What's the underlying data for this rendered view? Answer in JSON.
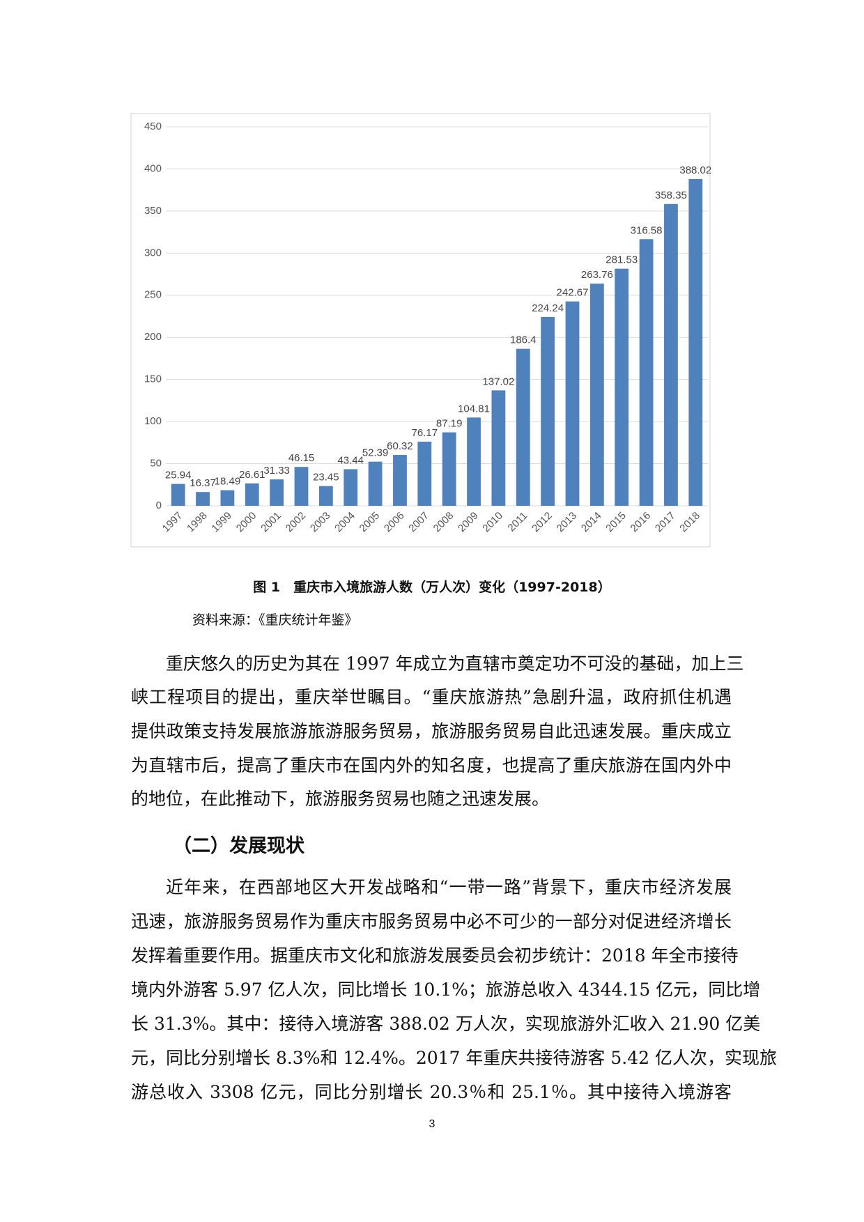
{
  "chart_data": {
    "type": "bar",
    "categories": [
      "1997",
      "1998",
      "1999",
      "2000",
      "2001",
      "2002",
      "2003",
      "2004",
      "2005",
      "2006",
      "2007",
      "2008",
      "2009",
      "2010",
      "2011",
      "2012",
      "2013",
      "2014",
      "2015",
      "2016",
      "2017",
      "2018"
    ],
    "values": [
      25.94,
      16.37,
      18.49,
      26.61,
      31.33,
      46.15,
      23.45,
      43.44,
      52.39,
      60.32,
      76.17,
      87.19,
      104.81,
      137.02,
      186.4,
      224.24,
      242.67,
      263.76,
      281.53,
      316.58,
      358.35,
      388.02
    ],
    "color": "#4f81bd",
    "ylim": [
      0,
      450
    ],
    "yticks": [
      0,
      50,
      100,
      150,
      200,
      250,
      300,
      350,
      400,
      450
    ],
    "grid": true
  },
  "caption": "图 1　重庆市入境旅游人数（万人次）变化（1997-2018）",
  "source": "资料来源：《重庆统计年鉴》",
  "paragraphs": [
    [
      "重庆悠久的历史为其在 1997 年成立为直辖市奠定功不可没的基础，加上三",
      "峡工程项目的提出，重庆举世瞩目。“重庆旅游热”急剧升温，政府抓住机遇",
      "提供政策支持发展旅游旅游服务贸易，旅游服务贸易自此迅速发展。重庆成立",
      "为直辖市后，提高了重庆市在国内外的知名度，也提高了重庆旅游在国内外中",
      "的地位，在此推动下，旅游服务贸易也随之迅速发展。"
    ],
    [
      "近年来，在西部地区大开发战略和“一带一路”背景下，重庆市经济发展",
      "迅速，旅游服务贸易作为重庆市服务贸易中必不可少的一部分对促进经济增长",
      "发挥着重要作用。据重庆市文化和旅游发展委员会初步统计：2018 年全市接待",
      "境内外游客 5.97 亿人次，同比增长 10.1%；旅游总收入 4344.15 亿元，同比增",
      "长 31.3%。其中：接待入境游客 388.02 万人次，实现旅游外汇收入 21.90 亿美",
      "元，同比分别增长 8.3%和 12.4%。2017 年重庆共接待游客 5.42 亿人次，实现旅",
      "游总收入 3308 亿元，同比分别增长 20.3％和 25.1％。其中接待入境游客"
    ]
  ],
  "heading": "（二）发展现状",
  "page_number": "3"
}
